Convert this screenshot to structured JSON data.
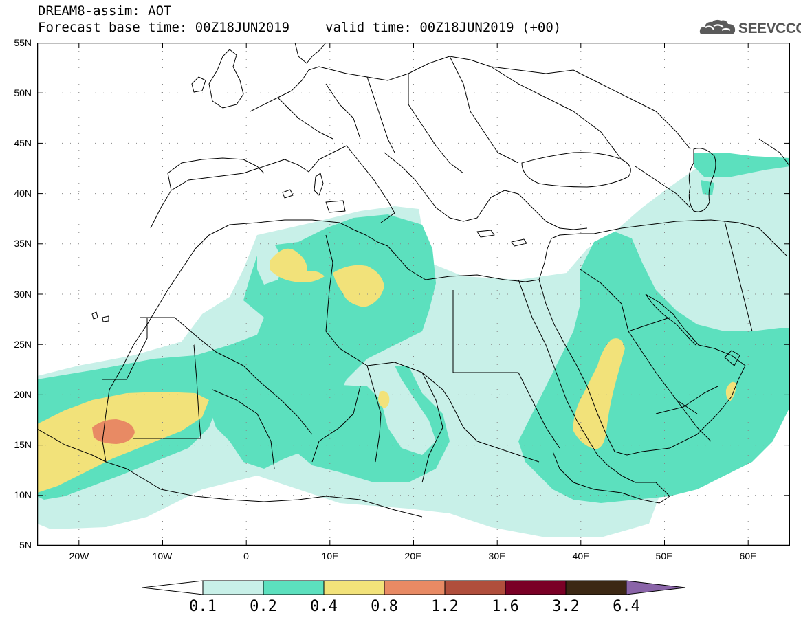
{
  "header": {
    "model_line": "DREAM8-assim: AOT",
    "base_time": "Forecast base time: 00Z18JUN2019",
    "valid_time": "valid time: 00Z18JUN2019 (+00)"
  },
  "logo": {
    "text": "SEEVCCC",
    "icon": "cloud-icon"
  },
  "map": {
    "lat_labels": [
      "55N",
      "50N",
      "45N",
      "40N",
      "35N",
      "30N",
      "25N",
      "20N",
      "15N",
      "10N",
      "5N"
    ],
    "lon_labels": [
      "20W",
      "10W",
      "0",
      "10E",
      "20E",
      "30E",
      "40E",
      "50E",
      "60E"
    ],
    "lat_range": [
      5,
      55
    ],
    "lon_range": [
      -25,
      65
    ],
    "grid": "dotted"
  },
  "colorbar": {
    "labels": [
      "0.1",
      "0.2",
      "0.4",
      "0.8",
      "1.2",
      "1.6",
      "3.2",
      "6.4"
    ],
    "colors": [
      "#ffffff",
      "#c8f0e8",
      "#5ce0be",
      "#f2e27a",
      "#e88a64",
      "#b04e3c",
      "#7a0026",
      "#3c2814",
      "#8a64a8"
    ]
  }
}
